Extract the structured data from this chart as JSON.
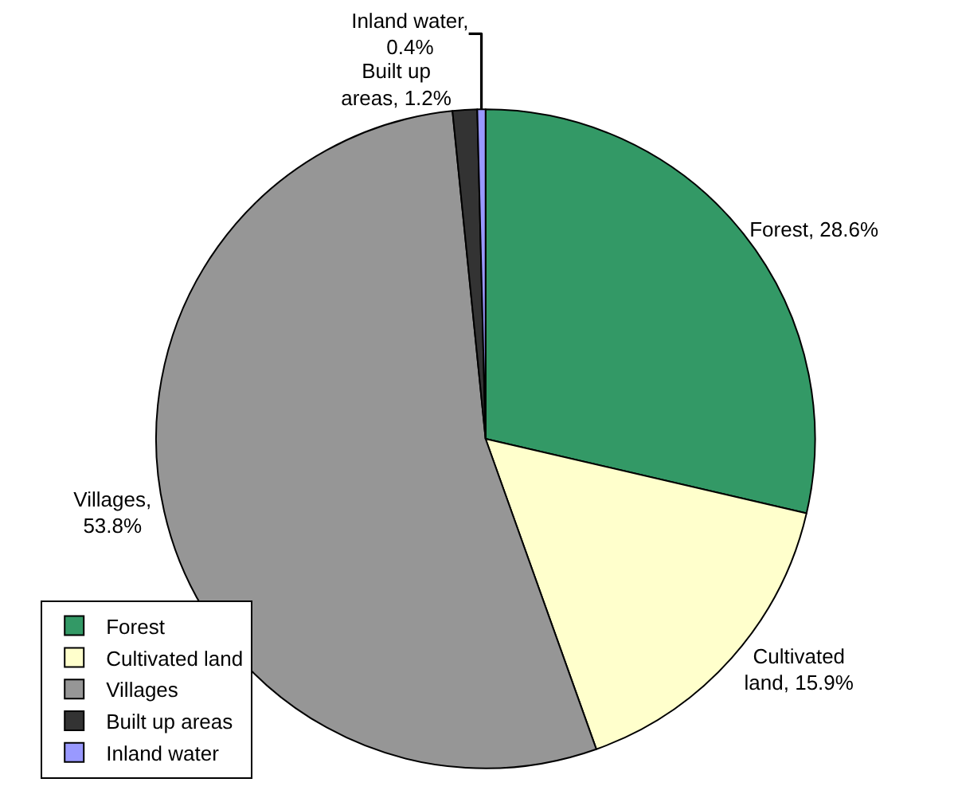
{
  "chart_data": {
    "type": "pie",
    "categories": [
      "Forest",
      "Cultivated land",
      "Villages",
      "Built up areas",
      "Inland water"
    ],
    "values": [
      28.6,
      15.9,
      53.8,
      1.2,
      0.4
    ],
    "colors": [
      "#339966",
      "#ffffcc",
      "#969696",
      "#333333",
      "#9999ff"
    ],
    "value_labels": [
      "Forest, 28.6%",
      "Cultivated\nland, 15.9%",
      "Villages,\n53.8%",
      "Built up\nareas, 1.2%",
      "Inland water,\n0.4%"
    ],
    "legend": "bottom left"
  }
}
